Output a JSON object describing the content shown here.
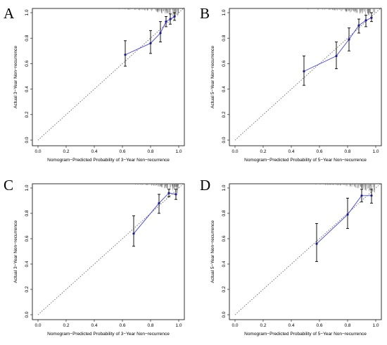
{
  "chart_data": [
    {
      "type": "scatter",
      "panel_label": "A",
      "xlabel": "Nomogram−Predicted Probability of 3−Year Non−recurrence",
      "ylabel": "Actual 3−Year Non−recurrence",
      "xlim": [
        0,
        1
      ],
      "ylim": [
        0,
        1
      ],
      "x_ticks": [
        "0.0",
        "0.2",
        "0.4",
        "0.6",
        "0.8",
        "1.0"
      ],
      "y_ticks": [
        "0.0",
        "0.2",
        "0.4",
        "0.6",
        "0.8",
        "1.0"
      ],
      "grid": false,
      "reference_line": "ideal diagonal (dotted)",
      "points": [
        {
          "x": 0.62,
          "y": 0.67,
          "low": 0.58,
          "high": 0.78
        },
        {
          "x": 0.8,
          "y": 0.76,
          "low": 0.68,
          "high": 0.86
        },
        {
          "x": 0.87,
          "y": 0.84,
          "low": 0.77,
          "high": 0.93
        },
        {
          "x": 0.91,
          "y": 0.93,
          "low": 0.89,
          "high": 0.97
        },
        {
          "x": 0.94,
          "y": 0.95,
          "low": 0.91,
          "high": 0.99
        },
        {
          "x": 0.97,
          "y": 0.97,
          "low": 0.94,
          "high": 1.0
        }
      ],
      "rug_range": [
        0.55,
        1.0
      ]
    },
    {
      "type": "scatter",
      "panel_label": "B",
      "xlabel": "Nomogram−Predicted Probability of 5−Year Non−recurrence",
      "ylabel": "Actual 5−Year Non−recurrence",
      "xlim": [
        0,
        1
      ],
      "ylim": [
        0,
        1
      ],
      "x_ticks": [
        "0.0",
        "0.2",
        "0.4",
        "0.6",
        "0.8",
        "1.0"
      ],
      "y_ticks": [
        "0.0",
        "0.2",
        "0.4",
        "0.6",
        "0.8",
        "1.0"
      ],
      "grid": false,
      "reference_line": "ideal diagonal (dotted)",
      "points": [
        {
          "x": 0.49,
          "y": 0.54,
          "low": 0.43,
          "high": 0.66
        },
        {
          "x": 0.72,
          "y": 0.66,
          "low": 0.56,
          "high": 0.77
        },
        {
          "x": 0.81,
          "y": 0.79,
          "low": 0.7,
          "high": 0.88
        },
        {
          "x": 0.88,
          "y": 0.9,
          "low": 0.84,
          "high": 0.95
        },
        {
          "x": 0.93,
          "y": 0.94,
          "low": 0.89,
          "high": 0.98
        },
        {
          "x": 0.97,
          "y": 0.96,
          "low": 0.93,
          "high": 1.0
        }
      ],
      "rug_range": [
        0.45,
        1.0
      ]
    },
    {
      "type": "scatter",
      "panel_label": "C",
      "xlabel": "Nomogram−Predicted Probability of 3−Year Non−recurrence",
      "ylabel": "Actual 3−Year Non−recurrence",
      "xlim": [
        0,
        1
      ],
      "ylim": [
        0,
        1
      ],
      "x_ticks": [
        "0.0",
        "0.2",
        "0.4",
        "0.6",
        "0.8",
        "1.0"
      ],
      "y_ticks": [
        "0.0",
        "0.2",
        "0.4",
        "0.6",
        "0.8",
        "1.0"
      ],
      "grid": false,
      "reference_line": "ideal diagonal (dotted)",
      "points": [
        {
          "x": 0.68,
          "y": 0.64,
          "low": 0.54,
          "high": 0.78
        },
        {
          "x": 0.86,
          "y": 0.88,
          "low": 0.8,
          "high": 0.95
        },
        {
          "x": 0.93,
          "y": 0.96,
          "low": 0.93,
          "high": 0.99
        },
        {
          "x": 0.98,
          "y": 0.95,
          "low": 0.91,
          "high": 0.99
        }
      ],
      "rug_range": [
        0.65,
        1.0
      ]
    },
    {
      "type": "scatter",
      "panel_label": "D",
      "xlabel": "Nomogram−Predicted Probability of 5−Year Non−recurrence",
      "ylabel": "Actual 5−Year Non−recurrence",
      "xlim": [
        0,
        1
      ],
      "ylim": [
        0,
        1
      ],
      "x_ticks": [
        "0.0",
        "0.2",
        "0.4",
        "0.6",
        "0.8",
        "1.0"
      ],
      "y_ticks": [
        "0.0",
        "0.2",
        "0.4",
        "0.6",
        "0.8",
        "1.0"
      ],
      "grid": false,
      "reference_line": "ideal diagonal (dotted)",
      "points": [
        {
          "x": 0.58,
          "y": 0.56,
          "low": 0.42,
          "high": 0.72
        },
        {
          "x": 0.8,
          "y": 0.79,
          "low": 0.68,
          "high": 0.92
        },
        {
          "x": 0.9,
          "y": 0.94,
          "low": 0.89,
          "high": 0.99
        },
        {
          "x": 0.97,
          "y": 0.94,
          "low": 0.88,
          "high": 0.99
        }
      ],
      "rug_range": [
        0.55,
        1.0
      ]
    }
  ],
  "colors": {
    "calibration_line": "#4444dd",
    "point": "#1a1a8a",
    "error_bar": "#000000",
    "diagonal": "#555555",
    "rug": "#777777",
    "axis": "#000000"
  }
}
